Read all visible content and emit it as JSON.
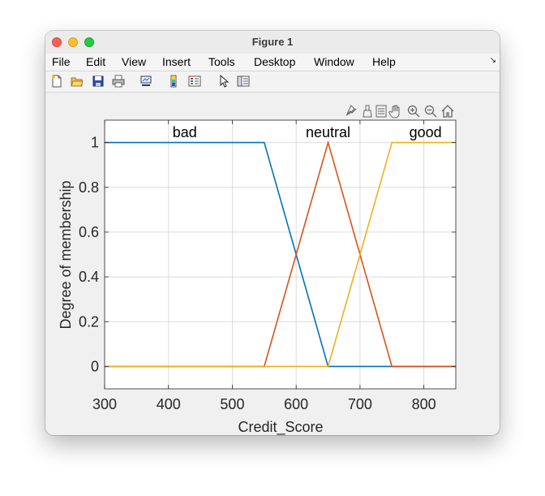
{
  "window": {
    "title": "Figure 1"
  },
  "menu": [
    "File",
    "Edit",
    "View",
    "Insert",
    "Tools",
    "Desktop",
    "Window",
    "Help"
  ],
  "toolbar_icons": [
    "new-figure-icon",
    "open-file-icon",
    "save-icon",
    "print-icon",
    "link-plot-icon",
    "colorbar-icon",
    "legend-icon",
    "edit-plot-icon",
    "property-inspector-icon"
  ],
  "axes_toolbar_icons": [
    "data-tips-icon",
    "brush-icon",
    "legend-toggle-icon",
    "pan-hand-icon",
    "zoom-in-icon",
    "zoom-out-icon",
    "home-icon"
  ],
  "chart_data": {
    "type": "line",
    "xlabel": "Credit_Score",
    "ylabel": "Degree of membership",
    "xlim": [
      300,
      850
    ],
    "ylim": [
      -0.1,
      1.1
    ],
    "xticks": [
      "300",
      "400",
      "500",
      "600",
      "700",
      "800"
    ],
    "yticks": [
      "0",
      "0.2",
      "0.4",
      "0.6",
      "0.8",
      "1"
    ],
    "grid": true,
    "series": [
      {
        "name": "bad",
        "color": "#0072bd",
        "x": [
          300,
          550,
          650,
          850
        ],
        "y": [
          1,
          1,
          0,
          0
        ]
      },
      {
        "name": "neutral",
        "color": "#d95319",
        "x": [
          300,
          550,
          650,
          750,
          850
        ],
        "y": [
          0,
          0,
          1,
          0,
          0
        ]
      },
      {
        "name": "good",
        "color": "#edb120",
        "x": [
          300,
          650,
          750,
          850
        ],
        "y": [
          0,
          0,
          1,
          1
        ]
      }
    ]
  }
}
